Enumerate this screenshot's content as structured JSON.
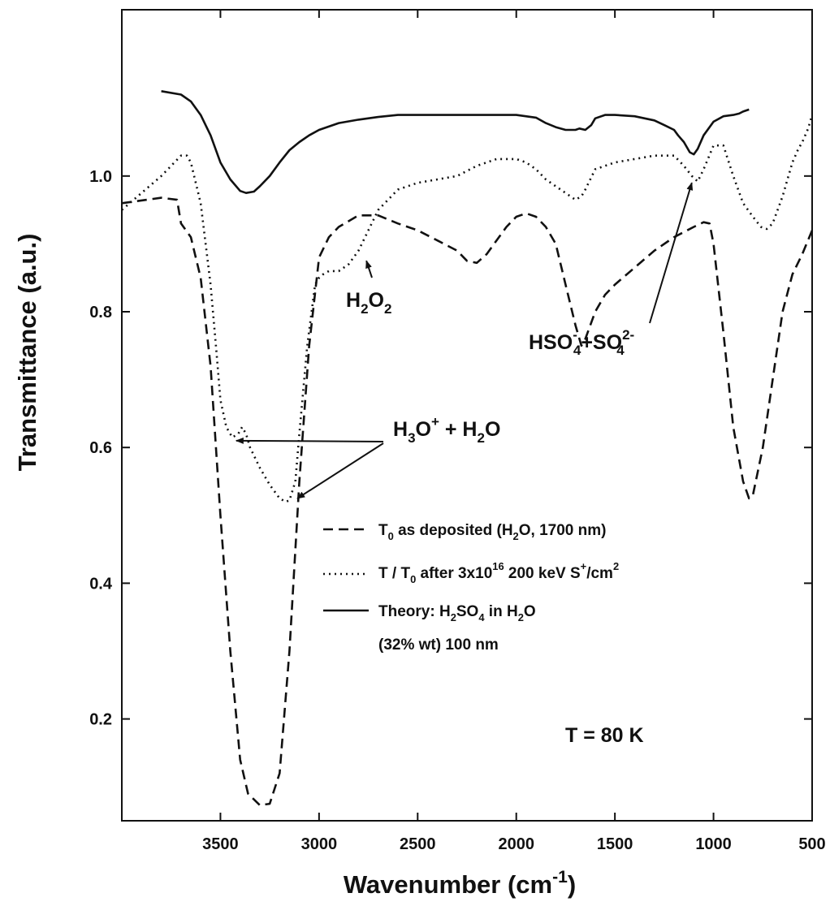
{
  "chart_data": {
    "type": "line",
    "xlabel": "Wavenumber (cm",
    "xlabel_sup": "-1",
    "xlabel_end": ")",
    "ylabel": "Transmittance (a.u.)",
    "xlim": [
      4000,
      500
    ],
    "xlim_note": "reversed",
    "ylim": [
      0.05,
      1.245
    ],
    "x_ticks": [
      3500,
      3000,
      2500,
      2000,
      1500,
      1000,
      500
    ],
    "x_tick_labels": [
      "3500",
      "3000",
      "2500",
      "2000",
      "1500",
      "1000",
      "500"
    ],
    "y_ticks": [
      0.2,
      0.4,
      0.6,
      0.8,
      1.0
    ],
    "y_tick_labels": [
      "0.2",
      "0.4",
      "0.6",
      "0.8",
      "1.0"
    ],
    "grid": false,
    "legend_position": "lower-middle",
    "series": [
      {
        "name": "T0 as deposited (H2O, 1700 nm)",
        "style": "dashed",
        "x": [
          4000,
          3800,
          3720,
          3700,
          3650,
          3600,
          3550,
          3500,
          3450,
          3400,
          3360,
          3300,
          3250,
          3200,
          3150,
          3100,
          3050,
          3000,
          2950,
          2900,
          2800,
          2700,
          2600,
          2500,
          2400,
          2300,
          2250,
          2200,
          2150,
          2100,
          2050,
          2000,
          1950,
          1900,
          1850,
          1800,
          1750,
          1700,
          1670,
          1650,
          1600,
          1550,
          1500,
          1400,
          1300,
          1200,
          1100,
          1050,
          1020,
          1000,
          950,
          900,
          850,
          820,
          800,
          750,
          700,
          650,
          600,
          550,
          500
        ],
        "y": [
          0.96,
          0.968,
          0.965,
          0.93,
          0.91,
          0.85,
          0.72,
          0.5,
          0.3,
          0.14,
          0.09,
          0.073,
          0.075,
          0.12,
          0.3,
          0.55,
          0.75,
          0.88,
          0.91,
          0.925,
          0.942,
          0.942,
          0.93,
          0.92,
          0.905,
          0.89,
          0.875,
          0.872,
          0.885,
          0.905,
          0.925,
          0.94,
          0.945,
          0.94,
          0.925,
          0.9,
          0.84,
          0.78,
          0.75,
          0.76,
          0.8,
          0.825,
          0.84,
          0.865,
          0.89,
          0.91,
          0.925,
          0.932,
          0.93,
          0.9,
          0.77,
          0.63,
          0.55,
          0.525,
          0.53,
          0.6,
          0.7,
          0.8,
          0.855,
          0.885,
          0.92
        ]
      },
      {
        "name": "T / T0 after 3x10^16 200 keV S+/cm2",
        "style": "dotted",
        "x": [
          4000,
          3900,
          3800,
          3750,
          3700,
          3670,
          3650,
          3600,
          3550,
          3520,
          3500,
          3470,
          3440,
          3410,
          3390,
          3370,
          3350,
          3300,
          3250,
          3200,
          3170,
          3150,
          3120,
          3100,
          3060,
          3020,
          3000,
          2980,
          2950,
          2900,
          2850,
          2800,
          2750,
          2700,
          2600,
          2500,
          2400,
          2300,
          2200,
          2150,
          2100,
          2000,
          1950,
          1900,
          1850,
          1800,
          1750,
          1700,
          1670,
          1650,
          1600,
          1550,
          1500,
          1400,
          1300,
          1250,
          1200,
          1150,
          1110,
          1080,
          1050,
          1000,
          950,
          900,
          850,
          800,
          760,
          730,
          700,
          650,
          600,
          570,
          550,
          520,
          500
        ],
        "y": [
          0.95,
          0.975,
          1.0,
          1.015,
          1.03,
          1.03,
          1.02,
          0.96,
          0.84,
          0.74,
          0.67,
          0.63,
          0.615,
          0.62,
          0.63,
          0.62,
          0.6,
          0.57,
          0.545,
          0.525,
          0.52,
          0.522,
          0.55,
          0.62,
          0.75,
          0.84,
          0.85,
          0.855,
          0.86,
          0.86,
          0.87,
          0.89,
          0.92,
          0.95,
          0.98,
          0.99,
          0.995,
          1.0,
          1.015,
          1.02,
          1.025,
          1.025,
          1.02,
          1.01,
          0.995,
          0.985,
          0.975,
          0.965,
          0.97,
          0.98,
          1.01,
          1.015,
          1.02,
          1.025,
          1.03,
          1.03,
          1.03,
          1.015,
          1.0,
          0.992,
          1.01,
          1.045,
          1.045,
          1.0,
          0.96,
          0.94,
          0.925,
          0.922,
          0.93,
          0.97,
          1.02,
          1.04,
          1.05,
          1.07,
          1.09
        ]
      },
      {
        "name": "Theory: H2SO4 in H2O (32% wt) 100 nm",
        "style": "solid",
        "x": [
          3800,
          3700,
          3650,
          3600,
          3550,
          3500,
          3450,
          3400,
          3370,
          3330,
          3300,
          3250,
          3200,
          3150,
          3100,
          3050,
          3000,
          2900,
          2800,
          2700,
          2600,
          2500,
          2400,
          2300,
          2200,
          2100,
          2000,
          1900,
          1850,
          1800,
          1750,
          1700,
          1680,
          1650,
          1620,
          1600,
          1550,
          1500,
          1400,
          1300,
          1250,
          1200,
          1180,
          1150,
          1120,
          1100,
          1080,
          1050,
          1000,
          950,
          900,
          870,
          850,
          820
        ],
        "y": [
          1.125,
          1.12,
          1.11,
          1.09,
          1.06,
          1.02,
          0.995,
          0.978,
          0.975,
          0.977,
          0.985,
          1.0,
          1.02,
          1.038,
          1.05,
          1.06,
          1.068,
          1.078,
          1.083,
          1.087,
          1.09,
          1.09,
          1.09,
          1.09,
          1.09,
          1.09,
          1.09,
          1.086,
          1.078,
          1.072,
          1.068,
          1.068,
          1.07,
          1.068,
          1.075,
          1.085,
          1.09,
          1.09,
          1.088,
          1.082,
          1.075,
          1.068,
          1.06,
          1.05,
          1.035,
          1.032,
          1.04,
          1.06,
          1.08,
          1.088,
          1.09,
          1.092,
          1.095,
          1.098
        ]
      }
    ],
    "annotations": {
      "h2o2": {
        "base": "H",
        "s1": "2",
        "mid": "O",
        "s2": "2"
      },
      "hso4": {
        "t1": "HSO",
        "sup1": "-",
        "sub1": "4",
        "t2": "+SO",
        "sup2": "2-",
        "sub2": "4"
      },
      "h3o": {
        "t1": "H",
        "sub1": "3",
        "t2": "O",
        "sup1": "+",
        "t3": " + H",
        "sub2": "2",
        "t4": "O"
      },
      "temp": "T = 80 K"
    },
    "legend": {
      "dashed": {
        "t1": "T",
        "sub1": "0",
        "t2": " as deposited (H",
        "sub2": "2",
        "t3": "O, 1700 nm)"
      },
      "dotted": {
        "t1": "T / T",
        "sub1": "0",
        "t2": " after 3x10",
        "sup1": "16",
        "t3": " 200 keV S",
        "sup2": "+",
        "t4": "/cm",
        "sup3": "2"
      },
      "solid": {
        "t1": "Theory: H",
        "sub1": "2",
        "t2": "SO",
        "sub2": "4",
        "t3": " in H",
        "sub3": "2",
        "t4": "O"
      },
      "solid_line2": "(32% wt) 100 nm"
    }
  }
}
